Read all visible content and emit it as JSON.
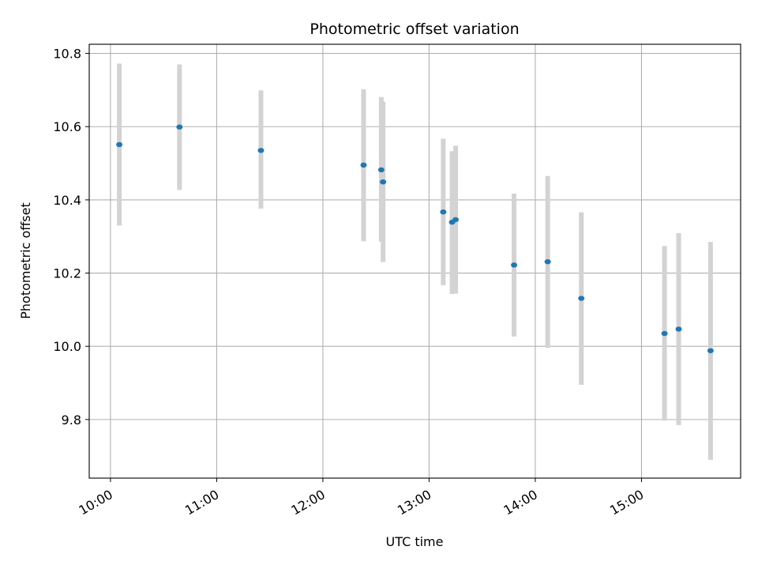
{
  "chart_data": {
    "type": "scatter",
    "title": "Photometric offset variation",
    "xlabel": "UTC time",
    "ylabel": "Photometric offset",
    "x_type": "time",
    "xlim": [
      "09:48",
      "15:56"
    ],
    "ylim": [
      9.64,
      10.825
    ],
    "x_ticks": [
      "10:00",
      "11:00",
      "12:00",
      "13:00",
      "14:00",
      "15:00"
    ],
    "y_ticks": [
      "9.8",
      "10.0",
      "10.2",
      "10.4",
      "10.6",
      "10.8"
    ],
    "grid": true,
    "colors": {
      "point": "#1f77b4",
      "error_bar": "#d3d3d3"
    },
    "points": [
      {
        "x": "10:05",
        "y": 10.551,
        "err_low": 10.33,
        "err_high": 10.772
      },
      {
        "x": "10:39",
        "y": 10.599,
        "err_low": 10.427,
        "err_high": 10.77
      },
      {
        "x": "11:25",
        "y": 10.535,
        "err_low": 10.376,
        "err_high": 10.699
      },
      {
        "x": "12:23",
        "y": 10.495,
        "err_low": 10.287,
        "err_high": 10.702
      },
      {
        "x": "12:33",
        "y": 10.482,
        "err_low": 10.286,
        "err_high": 10.681
      },
      {
        "x": "12:34",
        "y": 10.449,
        "err_low": 10.23,
        "err_high": 10.668
      },
      {
        "x": "13:08",
        "y": 10.367,
        "err_low": 10.167,
        "err_high": 10.567
      },
      {
        "x": "13:13",
        "y": 10.339,
        "err_low": 10.143,
        "err_high": 10.533
      },
      {
        "x": "13:15",
        "y": 10.346,
        "err_low": 10.144,
        "err_high": 10.548
      },
      {
        "x": "13:48",
        "y": 10.222,
        "err_low": 10.027,
        "err_high": 10.417
      },
      {
        "x": "14:07",
        "y": 10.231,
        "err_low": 9.996,
        "err_high": 10.465
      },
      {
        "x": "14:26",
        "y": 10.131,
        "err_low": 9.895,
        "err_high": 10.366
      },
      {
        "x": "15:13",
        "y": 10.035,
        "err_low": 9.797,
        "err_high": 10.274
      },
      {
        "x": "15:21",
        "y": 10.047,
        "err_low": 9.785,
        "err_high": 10.309
      },
      {
        "x": "15:39",
        "y": 9.988,
        "err_low": 9.69,
        "err_high": 10.285
      }
    ]
  }
}
